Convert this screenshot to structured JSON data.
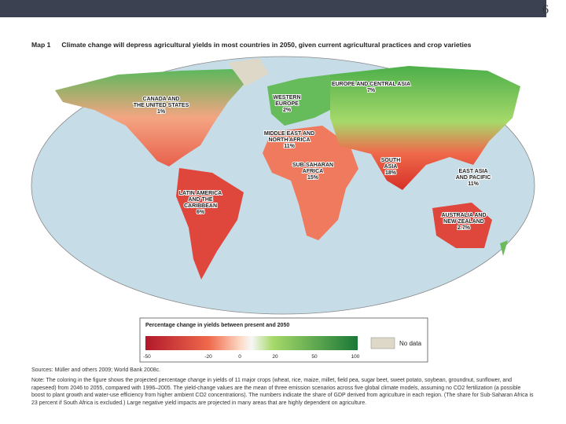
{
  "page_number": "6",
  "title": {
    "label": "Map 1",
    "text": "Climate change will depress agricultural yields in most countries in 2050, given current agricultural practices and crop varieties"
  },
  "regions": [
    {
      "lines": [
        "CANADA AND",
        "THE UNITED STATES"
      ],
      "share": "1%"
    },
    {
      "lines": [
        "WESTERN",
        "EUROPE"
      ],
      "share": "2%"
    },
    {
      "lines": [
        "EUROPE AND CENTRAL ASIA"
      ],
      "share": "7%"
    },
    {
      "lines": [
        "MIDDLE EAST AND",
        "NORTH AFRICA"
      ],
      "share": "11%"
    },
    {
      "lines": [
        "SUB-SAHARAN",
        "AFRICA"
      ],
      "share": "15%"
    },
    {
      "lines": [
        "SOUTH",
        "ASIA"
      ],
      "share": "18%"
    },
    {
      "lines": [
        "EAST ASIA",
        "AND PACIFIC"
      ],
      "share": "11%"
    },
    {
      "lines": [
        "LATIN AMERICA",
        "AND THE",
        "CARIBBEAN"
      ],
      "share": "6%"
    },
    {
      "lines": [
        "AUSTRALIA AND",
        "NEW ZEALAND"
      ],
      "share": "2.7%"
    }
  ],
  "legend": {
    "title": "Percentage change in yields between present and 2050",
    "ticks": [
      "-50",
      "-20",
      "0",
      "20",
      "50",
      "100"
    ],
    "no_data": "No data"
  },
  "sources": "Sources: Müller and others 2009; World Bank 2008c.",
  "note": "Note: The coloring in the figure shows the projected percentage change in yields of 11 major crops (wheat, rice, maize, millet, field pea, sugar beet, sweet potato, soybean, groundnut, sunflower, and rapeseed) from 2046 to 2055, compared with 1996–2005. The yield-change values are the mean of three emission scenarios across five global climate models, assuming no CO2 fertilization (a possible boost to plant growth and water-use efficiency from higher ambient CO2 concentrations). The numbers indicate the share of GDP derived from agriculture in each region. (The share for Sub-Saharan Africa is 23 percent if South Africa is excluded.) Large negative yield impacts are projected in many areas that are highly dependent on agriculture."
}
